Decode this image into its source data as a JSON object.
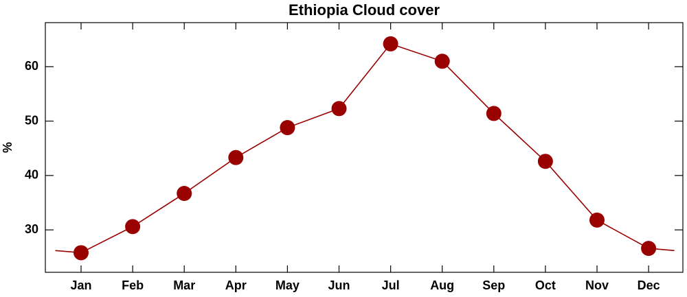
{
  "chart_data": {
    "type": "line",
    "title": "Ethiopia Cloud cover",
    "y_label": "%",
    "categories": [
      "Jan",
      "Feb",
      "Mar",
      "Apr",
      "May",
      "Jun",
      "Jul",
      "Aug",
      "Sep",
      "Oct",
      "Nov",
      "Dec"
    ],
    "series": [
      {
        "name": "Cloud cover",
        "color": "#990000",
        "values": [
          25.8,
          30.6,
          36.7,
          43.3,
          48.8,
          52.3,
          64.2,
          61.0,
          51.4,
          42.6,
          31.8,
          26.6
        ]
      }
    ],
    "ylim": [
      22.2,
      68.1
    ],
    "yticks": [
      30,
      40,
      50,
      60
    ],
    "grid": false
  }
}
